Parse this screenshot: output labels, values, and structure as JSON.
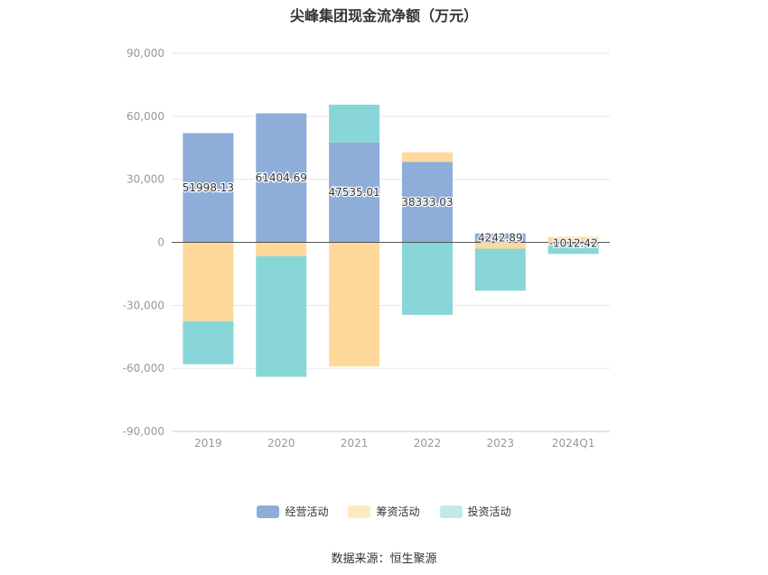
{
  "chart_data": {
    "type": "bar",
    "title": "尖峰集团现金流净额（万元）",
    "categories": [
      "2019",
      "2020",
      "2021",
      "2022",
      "2023",
      "2024Q1"
    ],
    "ylim": [
      -90000,
      90000
    ],
    "yticks": [
      90000,
      60000,
      30000,
      0,
      -30000,
      -60000,
      -90000
    ],
    "ytick_labels": [
      "90,000",
      "60,000",
      "30,000",
      "0",
      "-30,000",
      "-60,000",
      "-90,000"
    ],
    "stacked": true,
    "grid": true,
    "legend_position": "bottom",
    "series": [
      {
        "name": "经营活动",
        "color": "#8eadd9",
        "values": [
          51998.13,
          61404.69,
          47535.01,
          38333.03,
          4242.89,
          -1012.42
        ],
        "labels": [
          "51998.13",
          "61404.69",
          "47535.01",
          "38333.03",
          "4242.89",
          "-1012.42"
        ]
      },
      {
        "name": "筹资活动",
        "color": "#ffd99b",
        "values": [
          -37500,
          -6500,
          -59000,
          4500,
          -3000,
          2600
        ]
      },
      {
        "name": "投资活动",
        "color": "#88d6d8",
        "values": [
          -20500,
          -57500,
          18000,
          -34500,
          -20000,
          -4500
        ]
      }
    ]
  },
  "source": "数据来源：恒生聚源"
}
